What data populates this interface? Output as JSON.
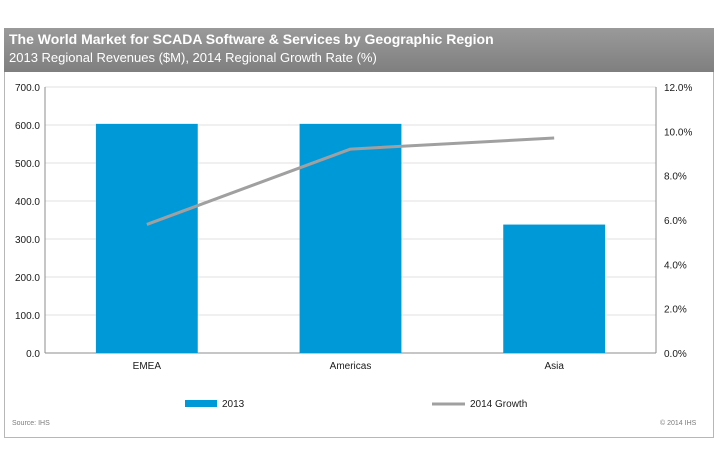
{
  "header": {
    "title": "The World Market for SCADA  Software & Services by Geographic  Region",
    "subtitle": "2013 Regional Revenues ($M), 2014 Regional Growth Rate (%)"
  },
  "chart_data": {
    "type": "bar",
    "title": "The World Market for SCADA  Software & Services by Geographic  Region",
    "subtitle": "2013 Regional Revenues ($M), 2014 Regional Growth Rate (%)",
    "categories": [
      "EMEA",
      "Americas",
      "Asia"
    ],
    "series": [
      {
        "name": "2013",
        "type": "bar",
        "axis": "left",
        "values": [
          603,
          603,
          338
        ]
      },
      {
        "name": "2014 Growth",
        "type": "line",
        "axis": "right",
        "values": [
          5.8,
          9.2,
          9.7
        ]
      }
    ],
    "y_left": {
      "ylim": [
        0,
        700
      ],
      "ticks": [
        "0.0",
        "100.0",
        "200.0",
        "300.0",
        "400.0",
        "500.0",
        "600.0",
        "700.0"
      ]
    },
    "y_right": {
      "ylim": [
        0,
        12
      ],
      "ticks": [
        "0.0%",
        "2.0%",
        "4.0%",
        "6.0%",
        "8.0%",
        "10.0%",
        "12.0%"
      ]
    },
    "grid": true,
    "legend": "bottom"
  },
  "colors": {
    "bar": "#0099d8",
    "line": "#a0a0a0",
    "grid": "#e2e2e2",
    "axis": "#8c8c8c",
    "text": "#1a1a1a"
  },
  "footer": {
    "source": "Source: IHS",
    "copyright": "© 2014 IHS"
  }
}
